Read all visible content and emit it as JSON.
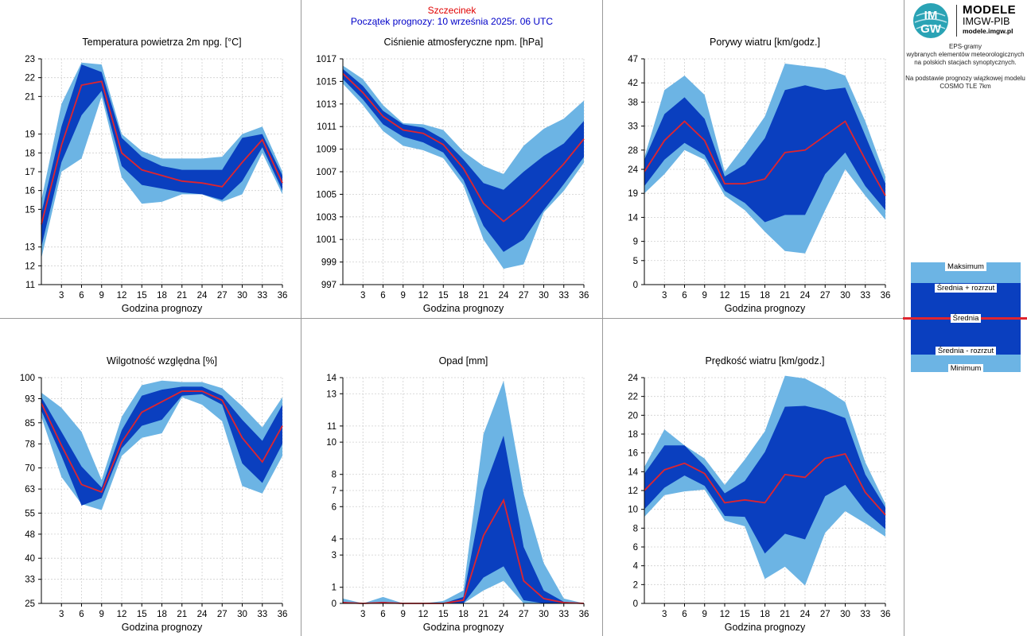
{
  "header": {
    "city": "Szczecinek",
    "forecast_start": "Początek prognozy: 10 września 2025r. 06 UTC"
  },
  "logo": {
    "title": "MODELE",
    "subtitle": "IMGW-PIB",
    "url": "modele.imgw.pl",
    "mark_line1": "IM",
    "mark_line2": "GW"
  },
  "info": {
    "line1": "EPS-gramy",
    "line2": "wybranych elementów meteorologicznych",
    "line3": "na polskich stacjach  synoptycznych.",
    "line4": "Na podstawie prognozy wiązkowej modelu",
    "line5": "COSMO TLE 7km"
  },
  "legend": {
    "max": "Maksimum",
    "mean_plus": "Średnia + rozrzut",
    "mean": "Średnia",
    "mean_minus": "Średnia - rozrzut",
    "min": "Minimum"
  },
  "colors": {
    "outer_band": "#6cb4e4",
    "inner_band": "#0a3fbf",
    "mean_line": "#e0242e"
  },
  "chart_data": [
    {
      "type": "area",
      "title": "Temperatura powietrza 2m npg. [°C]",
      "xlabel": "Godzina prognozy",
      "ylim": [
        11,
        23
      ],
      "yticks": [
        11,
        12,
        13,
        15,
        16,
        17,
        18,
        19,
        21,
        22,
        23
      ],
      "xticks": [
        3,
        6,
        9,
        12,
        15,
        18,
        21,
        24,
        27,
        30,
        33,
        36
      ],
      "x": [
        0,
        3,
        6,
        9,
        12,
        15,
        18,
        21,
        24,
        27,
        30,
        33,
        36
      ],
      "min": [
        12.4,
        17.0,
        17.7,
        21.0,
        16.7,
        15.3,
        15.4,
        15.8,
        15.8,
        15.4,
        15.8,
        18.0,
        15.8
      ],
      "mean_minus": [
        13.0,
        17.5,
        20.0,
        21.3,
        17.3,
        16.3,
        16.1,
        15.9,
        15.8,
        15.5,
        16.5,
        18.3,
        16.0
      ],
      "mean": [
        14.2,
        18.4,
        21.6,
        21.8,
        18.0,
        17.1,
        16.8,
        16.5,
        16.4,
        16.2,
        17.5,
        18.7,
        16.4
      ],
      "mean_plus": [
        14.8,
        19.4,
        22.7,
        22.3,
        18.8,
        17.8,
        17.3,
        17.1,
        17.1,
        17.1,
        18.8,
        19.0,
        16.8
      ],
      "max": [
        15.5,
        20.6,
        22.8,
        22.7,
        19.0,
        18.1,
        17.7,
        17.7,
        17.7,
        17.8,
        19.0,
        19.4,
        17.0
      ]
    },
    {
      "type": "area",
      "title": "Ciśnienie atmosferyczne npm. [hPa]",
      "xlabel": "Godzina prognozy",
      "ylim": [
        997,
        1017
      ],
      "yticks": [
        997,
        999,
        1001,
        1003,
        1005,
        1007,
        1009,
        1011,
        1013,
        1015,
        1017
      ],
      "xticks": [
        3,
        6,
        9,
        12,
        15,
        18,
        21,
        24,
        27,
        30,
        33,
        36
      ],
      "x": [
        0,
        3,
        6,
        9,
        12,
        15,
        18,
        21,
        24,
        27,
        30,
        33,
        36
      ],
      "min": [
        1014.8,
        1012.9,
        1010.6,
        1009.3,
        1008.9,
        1008.2,
        1005.8,
        1001.0,
        998.4,
        998.8,
        1003.4,
        1005.3,
        1007.8
      ],
      "mean_minus": [
        1015.2,
        1013.4,
        1011.2,
        1010.1,
        1009.6,
        1008.7,
        1006.3,
        1002.2,
        999.9,
        1001.0,
        1003.6,
        1005.9,
        1008.3
      ],
      "mean": [
        1015.7,
        1014.0,
        1011.9,
        1010.7,
        1010.4,
        1009.4,
        1007.3,
        1004.2,
        1002.6,
        1004.0,
        1005.8,
        1007.7,
        1009.9
      ],
      "mean_plus": [
        1016.1,
        1014.6,
        1012.4,
        1011.2,
        1010.9,
        1009.9,
        1008.1,
        1006.0,
        1005.4,
        1007.0,
        1008.4,
        1009.5,
        1011.5
      ],
      "max": [
        1016.4,
        1015.2,
        1012.9,
        1011.3,
        1011.2,
        1010.7,
        1008.8,
        1007.5,
        1006.8,
        1009.3,
        1010.8,
        1011.7,
        1013.3
      ]
    },
    {
      "type": "area",
      "title": "Porywy wiatru [km/godz.]",
      "xlabel": "Godzina prognozy",
      "ylim": [
        0,
        47
      ],
      "yticks": [
        0,
        5,
        9,
        14,
        19,
        24,
        28,
        33,
        38,
        42,
        47
      ],
      "xticks": [
        3,
        6,
        9,
        12,
        15,
        18,
        21,
        24,
        27,
        30,
        33,
        36
      ],
      "x": [
        0,
        3,
        6,
        9,
        12,
        15,
        18,
        21,
        24,
        27,
        30,
        33,
        36
      ],
      "min": [
        19.0,
        23.0,
        28.0,
        26.0,
        18.5,
        15.5,
        11.0,
        7.0,
        6.5,
        15.5,
        24.0,
        18.5,
        13.5
      ],
      "mean_minus": [
        20.5,
        26.0,
        29.5,
        27.0,
        19.5,
        17.0,
        13.0,
        14.5,
        14.5,
        23.0,
        27.5,
        20.5,
        15.5
      ],
      "mean": [
        23.5,
        30.0,
        34.0,
        30.0,
        21.0,
        21.0,
        22.0,
        27.5,
        28.0,
        31.0,
        34.0,
        26.0,
        18.5
      ],
      "mean_plus": [
        26.0,
        35.5,
        39.0,
        34.5,
        22.5,
        25.0,
        30.5,
        40.5,
        41.5,
        40.5,
        41.0,
        31.0,
        21.0
      ],
      "max": [
        26.5,
        40.5,
        43.5,
        39.5,
        23.5,
        29.0,
        35.0,
        46.0,
        45.5,
        45.0,
        43.5,
        34.0,
        22.5
      ]
    },
    {
      "type": "area",
      "title": "Wilgotność względna [%]",
      "xlabel": "Godzina prognozy",
      "ylim": [
        25,
        100
      ],
      "yticks": [
        25,
        33,
        40,
        48,
        55,
        63,
        70,
        78,
        85,
        93,
        100
      ],
      "xticks": [
        3,
        6,
        9,
        12,
        15,
        18,
        21,
        24,
        27,
        30,
        33,
        36
      ],
      "x": [
        0,
        3,
        6,
        9,
        12,
        15,
        18,
        21,
        24,
        27,
        30,
        33,
        36
      ],
      "min": [
        87.0,
        67.0,
        58.0,
        56.0,
        74.0,
        80.0,
        81.5,
        93.5,
        91.0,
        85.5,
        64.0,
        61.5,
        74.0
      ],
      "mean_minus": [
        89.0,
        74.0,
        57.5,
        60.0,
        76.5,
        84.0,
        86.0,
        94.0,
        94.5,
        91.0,
        71.5,
        65.0,
        78.0
      ],
      "mean": [
        91.5,
        77.5,
        64.5,
        62.0,
        78.5,
        88.5,
        92.0,
        95.5,
        95.5,
        92.5,
        80.0,
        72.0,
        84.0
      ],
      "mean_plus": [
        93.5,
        82.0,
        70.5,
        63.5,
        82.5,
        94.0,
        96.0,
        97.0,
        97.0,
        94.0,
        86.0,
        79.0,
        91.0
      ],
      "max": [
        95.0,
        90.0,
        82.0,
        66.0,
        87.0,
        97.5,
        99.0,
        98.5,
        98.5,
        96.5,
        90.5,
        83.5,
        93.5
      ]
    },
    {
      "type": "area",
      "title": "Opad [mm]",
      "xlabel": "Godzina prognozy",
      "ylim": [
        0,
        14
      ],
      "yticks": [
        0,
        1,
        3,
        4,
        6,
        7,
        8,
        10,
        11,
        13,
        14
      ],
      "xticks": [
        3,
        6,
        9,
        12,
        15,
        18,
        21,
        24,
        27,
        30,
        33,
        36
      ],
      "x": [
        0,
        3,
        6,
        9,
        12,
        15,
        18,
        21,
        24,
        27,
        30,
        33,
        36
      ],
      "min": [
        0,
        0,
        0,
        0,
        0,
        0,
        0,
        0.8,
        1.4,
        0,
        0,
        0,
        0
      ],
      "mean_minus": [
        0,
        0,
        0,
        0,
        0,
        0,
        0,
        1.6,
        2.3,
        0.2,
        0,
        0,
        0
      ],
      "mean": [
        0.05,
        0,
        0.05,
        0,
        0,
        0,
        0.2,
        4.2,
        6.4,
        1.4,
        0.3,
        0.05,
        0
      ],
      "mean_plus": [
        0.1,
        0,
        0.1,
        0,
        0,
        0,
        0.4,
        7.0,
        10.4,
        3.5,
        0.8,
        0.1,
        0
      ],
      "max": [
        0.3,
        0,
        0.4,
        0,
        0,
        0.15,
        0.8,
        10.5,
        13.8,
        6.8,
        2.5,
        0.3,
        0
      ]
    },
    {
      "type": "area",
      "title": "Prędkość wiatru [km/godz.]",
      "xlabel": "Godzina prognozy",
      "ylim": [
        0,
        24
      ],
      "yticks": [
        0,
        2,
        4,
        6,
        8,
        10,
        12,
        14,
        16,
        18,
        20,
        22,
        24
      ],
      "xticks": [
        3,
        6,
        9,
        12,
        15,
        18,
        21,
        24,
        27,
        30,
        33,
        36
      ],
      "x": [
        0,
        3,
        6,
        9,
        12,
        15,
        18,
        21,
        24,
        27,
        30,
        33,
        36
      ],
      "min": [
        9.2,
        11.5,
        11.9,
        12.1,
        8.8,
        8.2,
        2.6,
        3.9,
        1.9,
        7.5,
        9.8,
        8.5,
        7.1
      ],
      "mean_minus": [
        10.0,
        12.3,
        13.6,
        12.5,
        9.3,
        9.2,
        5.3,
        7.4,
        6.8,
        11.4,
        12.6,
        9.8,
        7.9
      ],
      "mean": [
        12.0,
        14.2,
        14.9,
        13.8,
        10.7,
        11.0,
        10.7,
        13.7,
        13.4,
        15.4,
        15.9,
        11.8,
        9.4
      ],
      "mean_plus": [
        13.8,
        16.8,
        16.8,
        14.6,
        11.7,
        13.0,
        16.1,
        20.9,
        21.0,
        20.5,
        19.7,
        13.7,
        10.2
      ],
      "max": [
        14.5,
        18.5,
        16.8,
        15.4,
        12.6,
        15.3,
        18.3,
        24.2,
        23.9,
        22.8,
        21.4,
        15.0,
        10.6
      ]
    }
  ]
}
